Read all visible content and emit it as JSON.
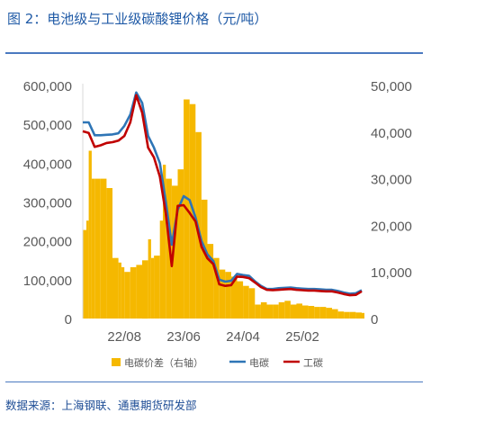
{
  "title": "图 2：电池级与工业级碳酸锂价格（元/吨）",
  "source": "数据来源：上海钢联、通惠期货研发部",
  "colors": {
    "spread": "#f5b800",
    "battery": "#2e75b6",
    "industrial": "#c00000",
    "rule": "#4a79c0",
    "axis_text": "#595959",
    "title": "#1f5aa6"
  },
  "chart_data": {
    "type": "bar+line",
    "x_ticks": [
      "22/08",
      "23/06",
      "24/04",
      "25/02"
    ],
    "x_tick_positions": [
      7,
      17,
      27,
      37
    ],
    "x_range": [
      0,
      47
    ],
    "ylim_left": [
      0,
      600000
    ],
    "yticks_left": [
      "600,000",
      "500,000",
      "400,000",
      "300,000",
      "200,000",
      "100,000",
      "0"
    ],
    "ylim_right": [
      0,
      50000
    ],
    "yticks_right": [
      "50,000",
      "40,000",
      "30,000",
      "20,000",
      "10,000",
      "0"
    ],
    "legend": [
      "电碳价差（右轴）",
      "电碳",
      "工碳"
    ],
    "legend_placement": "bottom",
    "series": [
      {
        "name": "电碳价差（右轴）",
        "type": "bar",
        "axis": "right",
        "x": [
          0,
          0.6,
          1,
          1.5,
          2,
          3,
          4,
          5,
          6,
          6.5,
          7,
          8,
          9,
          10,
          11,
          11.5,
          12,
          13,
          13.5,
          14,
          15,
          16,
          17,
          18,
          19,
          20,
          21,
          22,
          23,
          24,
          25,
          26,
          27,
          28,
          29,
          30,
          31,
          32,
          33,
          34,
          35,
          36,
          37,
          38,
          39,
          40,
          41,
          42,
          43,
          44,
          45,
          46,
          47
        ],
        "values": [
          19000,
          21000,
          36000,
          30000,
          30000,
          30000,
          28000,
          13000,
          12000,
          11000,
          10000,
          11000,
          11500,
          12500,
          17000,
          13000,
          13500,
          21000,
          33000,
          30000,
          28500,
          32000,
          47000,
          46000,
          40000,
          25500,
          16000,
          13000,
          10500,
          10000,
          9000,
          8000,
          7000,
          6500,
          3000,
          3500,
          3000,
          3000,
          3500,
          3800,
          3000,
          3200,
          2800,
          2700,
          2500,
          2500,
          2300,
          2000,
          1500,
          1400,
          1400,
          1300,
          1200
        ]
      },
      {
        "name": "电碳",
        "type": "line",
        "axis": "left",
        "x": [
          0,
          1,
          2,
          3,
          4,
          5,
          6,
          7,
          8,
          9,
          10,
          11,
          12,
          13,
          14,
          15,
          16,
          17,
          18,
          19,
          20,
          21,
          22,
          23,
          24,
          25,
          26,
          27,
          28,
          29,
          30,
          31,
          32,
          33,
          34,
          35,
          36,
          37,
          38,
          39,
          40,
          41,
          42,
          43,
          44,
          45,
          46,
          47
        ],
        "values": [
          505000,
          505000,
          472000,
          472000,
          473000,
          474000,
          477000,
          496000,
          525000,
          582000,
          555000,
          470000,
          440000,
          400000,
          300000,
          190000,
          280000,
          315000,
          305000,
          260000,
          200000,
          165000,
          148000,
          100000,
          95000,
          97000,
          115000,
          112000,
          110000,
          96000,
          84000,
          76000,
          76000,
          78000,
          79000,
          80000,
          78000,
          77000,
          76000,
          76000,
          75000,
          74000,
          74000,
          71000,
          67000,
          64000,
          65000,
          73000
        ]
      },
      {
        "name": "工碳",
        "type": "line",
        "axis": "left",
        "x": [
          0,
          1,
          2,
          3,
          4,
          5,
          6,
          7,
          8,
          9,
          10,
          11,
          12,
          13,
          14,
          15,
          16,
          17,
          18,
          19,
          20,
          21,
          22,
          23,
          24,
          25,
          26,
          27,
          28,
          29,
          30,
          31,
          32,
          33,
          34,
          35,
          36,
          37,
          38,
          39,
          40,
          41,
          42,
          43,
          44,
          45,
          46,
          47
        ],
        "values": [
          482000,
          478000,
          442000,
          446000,
          452000,
          454000,
          458000,
          470000,
          505000,
          575000,
          530000,
          440000,
          415000,
          365000,
          270000,
          135000,
          290000,
          292000,
          272000,
          250000,
          185000,
          155000,
          140000,
          88000,
          84000,
          86000,
          108000,
          107000,
          104000,
          93000,
          81000,
          74000,
          73000,
          74000,
          75000,
          76000,
          74000,
          73000,
          72000,
          72000,
          71000,
          70000,
          70000,
          67000,
          63000,
          60000,
          61000,
          70000
        ]
      }
    ]
  }
}
